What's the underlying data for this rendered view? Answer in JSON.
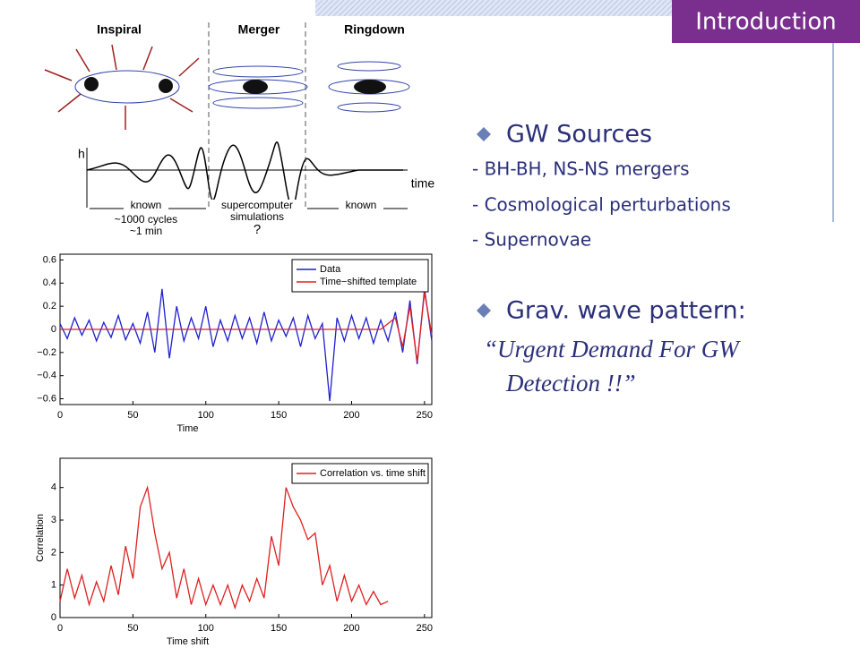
{
  "header": {
    "title": "Introduction"
  },
  "bullets": [
    {
      "heading": "GW Sources",
      "items": [
        "- BH-BH, NS-NS mergers",
        "- Cosmological perturbations",
        "- Supernovae"
      ]
    },
    {
      "heading": "Grav. wave pattern:",
      "quote": [
        "“Urgent Demand For GW",
        "Detection !!”"
      ]
    }
  ],
  "diagram": {
    "phases": [
      "Inspiral",
      "Merger",
      "Ringdown"
    ],
    "axis_h": "h",
    "axis_time": "time",
    "spans": [
      [
        "known"
      ],
      [
        "supercomputer",
        "simulations"
      ],
      [
        "known"
      ]
    ],
    "notes": [
      "~1000 cycles",
      "~1 min",
      "?"
    ]
  },
  "chart_data": [
    {
      "type": "line",
      "xlabel": "Time",
      "x": [
        0,
        5,
        10,
        15,
        20,
        25,
        30,
        35,
        40,
        45,
        50,
        55,
        60,
        65,
        70,
        75,
        80,
        85,
        90,
        95,
        100,
        105,
        110,
        115,
        120,
        125,
        130,
        135,
        140,
        145,
        150,
        155,
        160,
        165,
        170,
        175,
        180,
        185,
        190,
        195,
        200,
        205,
        210,
        215,
        220,
        225,
        230,
        235,
        240,
        245,
        250,
        255
      ],
      "series": [
        {
          "name": "Data",
          "color": "#1f1fd0",
          "values": [
            0.05,
            -0.08,
            0.1,
            -0.05,
            0.08,
            -0.1,
            0.06,
            -0.07,
            0.12,
            -0.09,
            0.05,
            -0.12,
            0.15,
            -0.2,
            0.35,
            -0.25,
            0.2,
            -0.1,
            0.1,
            -0.08,
            0.2,
            -0.15,
            0.08,
            -0.1,
            0.12,
            -0.08,
            0.1,
            -0.12,
            0.15,
            -0.1,
            0.08,
            -0.06,
            0.1,
            -0.15,
            0.12,
            -0.08,
            0.05,
            -0.62,
            0.1,
            -0.1,
            0.12,
            -0.08,
            0.1,
            -0.12,
            0.08,
            -0.1,
            0.15,
            -0.2,
            0.25,
            -0.3,
            0.35,
            -0.1
          ]
        },
        {
          "name": "Time−shifted template",
          "color": "#e02020",
          "values": [
            0,
            0,
            0,
            0,
            0,
            0,
            0,
            0,
            0,
            0,
            0,
            0,
            0,
            0,
            0,
            0,
            0,
            0,
            0,
            0,
            0,
            0,
            0,
            0,
            0,
            0,
            0,
            0,
            0,
            0,
            0,
            0,
            0,
            0,
            0,
            0,
            0,
            0,
            0,
            0,
            0,
            0,
            0,
            0,
            0,
            0.05,
            0.1,
            -0.15,
            0.2,
            -0.28,
            0.32,
            -0.05
          ]
        }
      ],
      "xlim": [
        0,
        255
      ],
      "xticks": [
        0,
        50,
        100,
        150,
        200,
        250
      ],
      "ylim": [
        -0.65,
        0.65
      ],
      "yticks": [
        {
          "value": -0.6,
          "label": "−0.6"
        },
        {
          "value": -0.4,
          "label": "−0.4"
        },
        {
          "value": -0.2,
          "label": "−0.2"
        },
        0,
        0.2,
        0.4,
        0.6
      ],
      "legend": "upper right"
    },
    {
      "type": "line",
      "xlabel": "Time shift",
      "ylabel": "Correlation",
      "x": [
        0,
        5,
        10,
        15,
        20,
        25,
        30,
        35,
        40,
        45,
        50,
        55,
        60,
        65,
        70,
        75,
        80,
        85,
        90,
        95,
        100,
        105,
        110,
        115,
        120,
        125,
        130,
        135,
        140,
        145,
        150,
        155,
        160,
        165,
        170,
        175,
        180,
        185,
        190,
        195,
        200,
        205,
        210,
        215,
        220,
        225
      ],
      "series": [
        {
          "name": "Correlation vs. time shift",
          "color": "#e02020",
          "values": [
            0.5,
            1.5,
            0.6,
            1.3,
            0.4,
            1.1,
            0.5,
            1.6,
            0.7,
            2.2,
            1.2,
            3.4,
            4.0,
            2.6,
            1.5,
            2.0,
            0.6,
            1.5,
            0.4,
            1.2,
            0.4,
            1.0,
            0.4,
            1.0,
            0.3,
            1.0,
            0.5,
            1.2,
            0.6,
            2.5,
            1.6,
            4.0,
            3.4,
            3.0,
            2.4,
            2.6,
            1.0,
            1.6,
            0.5,
            1.3,
            0.5,
            1.0,
            0.4,
            0.8,
            0.4,
            0.5
          ]
        }
      ],
      "xlim": [
        0,
        255
      ],
      "xticks": [
        0,
        50,
        100,
        150,
        200,
        250
      ],
      "ylim": [
        0,
        4.9
      ],
      "yticks": [
        0,
        1,
        2,
        3,
        4
      ],
      "legend": "upper right"
    }
  ]
}
